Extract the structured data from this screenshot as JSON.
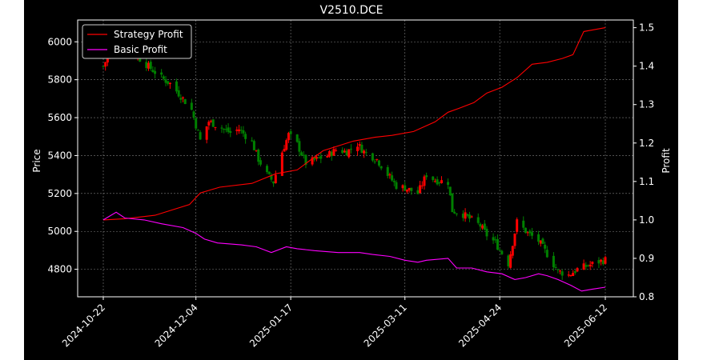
{
  "chart_data": {
    "type": "candlestick+line",
    "title": "V2510.DCE",
    "xlabel": "",
    "ylabel_left": "Price",
    "ylabel_right": "Profit",
    "x_tick_labels": [
      "2024-10-22",
      "2024-12-04",
      "2025-01-17",
      "2025-03-11",
      "2025-04-24",
      "2025-06-12"
    ],
    "x_tick_dates": [
      "2024-10-22",
      "2024-12-04",
      "2025-01-17",
      "2025-03-11",
      "2025-04-24",
      "2025-06-12"
    ],
    "y_left_ticks": [
      4800,
      5000,
      5200,
      5400,
      5600,
      5800,
      6000
    ],
    "y_left_lim": [
      4655,
      6115
    ],
    "y_right_ticks": [
      0.8,
      0.9,
      1.0,
      1.1,
      1.2,
      1.3,
      1.4,
      1.5
    ],
    "y_right_lim": [
      0.8,
      1.52
    ],
    "grid": true,
    "legend_position": "top-left",
    "background": "#000000",
    "colors": {
      "up": "#ff0000",
      "down": "#008000",
      "strategy": "#ff0000",
      "basic": "#ff00ff",
      "axes": "#ffffff",
      "grid": "#808080"
    },
    "legend": [
      {
        "label": "Strategy Profit",
        "color": "#ff0000"
      },
      {
        "label": "Basic Profit",
        "color": "#ff00ff"
      }
    ],
    "price_anchors": [
      [
        "2024-10-22",
        5870
      ],
      [
        "2024-10-24",
        5920
      ],
      [
        "2024-10-28",
        5965
      ],
      [
        "2024-11-04",
        5950
      ],
      [
        "2024-11-08",
        5910
      ],
      [
        "2024-11-12",
        5870
      ],
      [
        "2024-11-18",
        5810
      ],
      [
        "2024-11-22",
        5780
      ],
      [
        "2024-11-28",
        5700
      ],
      [
        "2024-12-02",
        5640
      ],
      [
        "2024-12-04",
        5560
      ],
      [
        "2024-12-06",
        5480
      ],
      [
        "2024-12-10",
        5580
      ],
      [
        "2024-12-16",
        5545
      ],
      [
        "2024-12-20",
        5520
      ],
      [
        "2024-12-24",
        5540
      ],
      [
        "2024-12-30",
        5470
      ],
      [
        "2025-01-02",
        5380
      ],
      [
        "2025-01-06",
        5300
      ],
      [
        "2025-01-09",
        5260
      ],
      [
        "2025-01-13",
        5420
      ],
      [
        "2025-01-16",
        5510
      ],
      [
        "2025-01-20",
        5460
      ],
      [
        "2025-01-24",
        5360
      ],
      [
        "2025-02-03",
        5400
      ],
      [
        "2025-02-07",
        5430
      ],
      [
        "2025-02-12",
        5420
      ],
      [
        "2025-02-17",
        5460
      ],
      [
        "2025-02-20",
        5420
      ],
      [
        "2025-02-26",
        5380
      ],
      [
        "2025-03-03",
        5300
      ],
      [
        "2025-03-07",
        5240
      ],
      [
        "2025-03-11",
        5230
      ],
      [
        "2025-03-17",
        5200
      ],
      [
        "2025-03-21",
        5300
      ],
      [
        "2025-03-25",
        5270
      ],
      [
        "2025-03-31",
        5260
      ],
      [
        "2025-04-02",
        5110
      ],
      [
        "2025-04-07",
        5090
      ],
      [
        "2025-04-11",
        5060
      ],
      [
        "2025-04-15",
        5030
      ],
      [
        "2025-04-18",
        4980
      ],
      [
        "2025-04-22",
        4940
      ],
      [
        "2025-04-28",
        4830
      ],
      [
        "2025-05-02",
        5050
      ],
      [
        "2025-05-07",
        4990
      ],
      [
        "2025-05-12",
        4950
      ],
      [
        "2025-05-16",
        4880
      ],
      [
        "2025-05-21",
        4790
      ],
      [
        "2025-05-26",
        4770
      ],
      [
        "2025-05-30",
        4800
      ],
      [
        "2025-06-04",
        4820
      ],
      [
        "2025-06-09",
        4840
      ],
      [
        "2025-06-12",
        4850
      ]
    ],
    "strategy_profit": [
      [
        "2024-10-22",
        1.0
      ],
      [
        "2024-11-01",
        1.003
      ],
      [
        "2024-11-15",
        1.012
      ],
      [
        "2024-12-01",
        1.04
      ],
      [
        "2024-12-06",
        1.07
      ],
      [
        "2024-12-15",
        1.085
      ],
      [
        "2024-12-30",
        1.095
      ],
      [
        "2025-01-10",
        1.12
      ],
      [
        "2025-01-20",
        1.13
      ],
      [
        "2025-02-01",
        1.18
      ],
      [
        "2025-02-15",
        1.205
      ],
      [
        "2025-02-25",
        1.215
      ],
      [
        "2025-03-05",
        1.22
      ],
      [
        "2025-03-15",
        1.23
      ],
      [
        "2025-03-25",
        1.255
      ],
      [
        "2025-03-31",
        1.28
      ],
      [
        "2025-04-05",
        1.29
      ],
      [
        "2025-04-12",
        1.305
      ],
      [
        "2025-04-18",
        1.33
      ],
      [
        "2025-04-25",
        1.345
      ],
      [
        "2025-05-02",
        1.37
      ],
      [
        "2025-05-09",
        1.405
      ],
      [
        "2025-05-16",
        1.41
      ],
      [
        "2025-05-23",
        1.42
      ],
      [
        "2025-05-28",
        1.43
      ],
      [
        "2025-06-02",
        1.49
      ],
      [
        "2025-06-12",
        1.5
      ]
    ],
    "basic_profit": [
      [
        "2024-10-22",
        1.0
      ],
      [
        "2024-10-28",
        1.02
      ],
      [
        "2024-11-01",
        1.005
      ],
      [
        "2024-11-10",
        1.0
      ],
      [
        "2024-11-18",
        0.99
      ],
      [
        "2024-11-28",
        0.98
      ],
      [
        "2024-12-04",
        0.965
      ],
      [
        "2024-12-08",
        0.95
      ],
      [
        "2024-12-14",
        0.94
      ],
      [
        "2024-12-25",
        0.935
      ],
      [
        "2025-01-01",
        0.93
      ],
      [
        "2025-01-08",
        0.915
      ],
      [
        "2025-01-15",
        0.93
      ],
      [
        "2025-01-20",
        0.925
      ],
      [
        "2025-01-28",
        0.92
      ],
      [
        "2025-02-08",
        0.915
      ],
      [
        "2025-02-18",
        0.915
      ],
      [
        "2025-02-24",
        0.91
      ],
      [
        "2025-03-04",
        0.905
      ],
      [
        "2025-03-11",
        0.895
      ],
      [
        "2025-03-17",
        0.89
      ],
      [
        "2025-03-21",
        0.895
      ],
      [
        "2025-03-31",
        0.9
      ],
      [
        "2025-04-04",
        0.875
      ],
      [
        "2025-04-11",
        0.875
      ],
      [
        "2025-04-18",
        0.865
      ],
      [
        "2025-04-25",
        0.86
      ],
      [
        "2025-05-01",
        0.845
      ],
      [
        "2025-05-06",
        0.85
      ],
      [
        "2025-05-12",
        0.86
      ],
      [
        "2025-05-16",
        0.855
      ],
      [
        "2025-05-21",
        0.845
      ],
      [
        "2025-05-27",
        0.83
      ],
      [
        "2025-06-01",
        0.815
      ],
      [
        "2025-06-06",
        0.82
      ],
      [
        "2025-06-12",
        0.825
      ]
    ]
  }
}
